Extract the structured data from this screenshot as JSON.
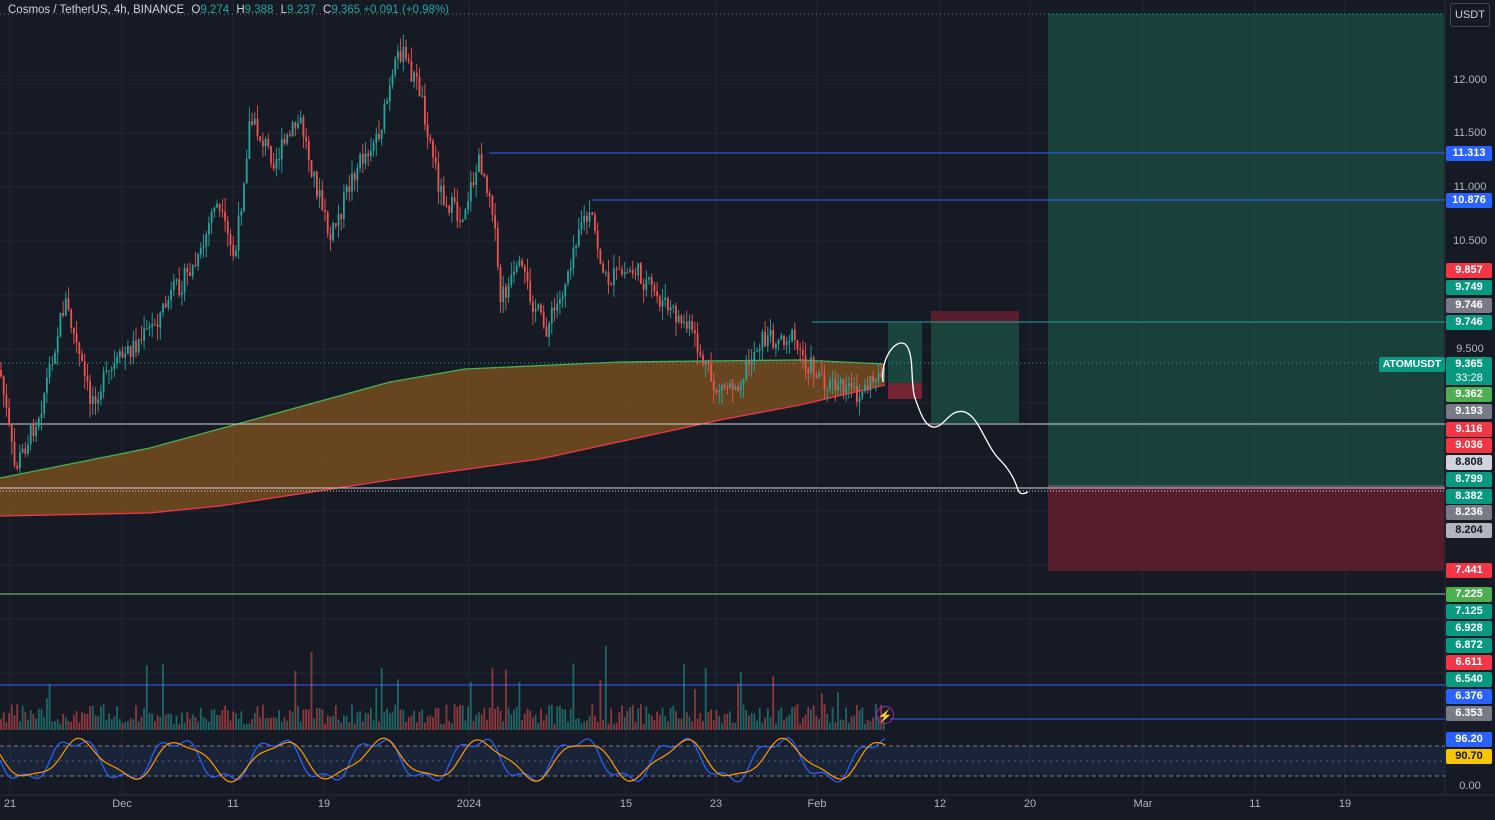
{
  "header": {
    "symbol": "Cosmos / TetherUS, 4h, BINANCE",
    "open_label": "O",
    "open": "9.274",
    "high_label": "H",
    "high": "9.388",
    "low_label": "L",
    "low": "9.237",
    "close_label": "C",
    "close": "9.365",
    "change": "+0.091 (+0.98%)"
  },
  "price_axis": {
    "unit": "USDT",
    "ticks": [
      "12.000",
      "11.500",
      "11.000",
      "10.500",
      "9.500",
      "0.00"
    ]
  },
  "price_labels": [
    {
      "text": "11.313",
      "bg": "#2962ff",
      "fg": "#ffffff"
    },
    {
      "text": "10.876",
      "bg": "#2962ff",
      "fg": "#ffffff"
    },
    {
      "text": "9.857",
      "bg": "#f23645",
      "fg": "#ffffff"
    },
    {
      "text": "9.749",
      "bg": "#089981",
      "fg": "#ffffff"
    },
    {
      "text": "9.746",
      "bg": "#787b86",
      "fg": "#ffffff"
    },
    {
      "text": "9.746",
      "bg": "#089981",
      "fg": "#ffffff"
    },
    {
      "text": "9.365",
      "bg": "#089981",
      "fg": "#ffffff"
    },
    {
      "text": "9.362",
      "bg": "#4caf50",
      "fg": "#ffffff"
    },
    {
      "text": "9.193",
      "bg": "#787b86",
      "fg": "#ffffff"
    },
    {
      "text": "9.116",
      "bg": "#f23645",
      "fg": "#ffffff"
    },
    {
      "text": "9.036",
      "bg": "#f23645",
      "fg": "#ffffff"
    },
    {
      "text": "8.808",
      "bg": "#d1d4dc",
      "fg": "#131722"
    },
    {
      "text": "8.799",
      "bg": "#089981",
      "fg": "#ffffff"
    },
    {
      "text": "8.382",
      "bg": "#089981",
      "fg": "#ffffff"
    },
    {
      "text": "8.236",
      "bg": "#787b86",
      "fg": "#ffffff"
    },
    {
      "text": "8.204",
      "bg": "#b2b5be",
      "fg": "#131722"
    },
    {
      "text": "7.441",
      "bg": "#f23645",
      "fg": "#ffffff"
    },
    {
      "text": "7.225",
      "bg": "#4caf50",
      "fg": "#ffffff"
    },
    {
      "text": "7.125",
      "bg": "#089981",
      "fg": "#ffffff"
    },
    {
      "text": "6.928",
      "bg": "#089981",
      "fg": "#ffffff"
    },
    {
      "text": "6.872",
      "bg": "#089981",
      "fg": "#ffffff"
    },
    {
      "text": "6.611",
      "bg": "#f23645",
      "fg": "#ffffff"
    },
    {
      "text": "6.540",
      "bg": "#089981",
      "fg": "#ffffff"
    },
    {
      "text": "6.376",
      "bg": "#2962ff",
      "fg": "#ffffff"
    },
    {
      "text": "6.353",
      "bg": "#787b86",
      "fg": "#ffffff"
    },
    {
      "text": "96.20",
      "bg": "#2962ff",
      "fg": "#ffffff"
    },
    {
      "text": "90.70",
      "bg": "#f7c600",
      "fg": "#131722"
    }
  ],
  "symbol_tag": "ATOMUSDT",
  "countdown": "33:28",
  "time_axis": [
    "21",
    "Dec",
    "11",
    "19",
    "2024",
    "15",
    "23",
    "Feb",
    "12",
    "20",
    "Mar",
    "11",
    "19"
  ],
  "colors": {
    "background": "#161a25",
    "up": "#26a69a",
    "down": "#ef5350",
    "ribbon_fill": "#8a5a1c",
    "ribbon_upper": "#4caf50",
    "ribbon_lower": "#f23645",
    "hline_blue": "#2962ff",
    "hline_white": "#d1d4dc",
    "hline_green": "#81c784",
    "long_target": "#1b4d43",
    "long_stop": "#5c1f2b",
    "stoch_k": "#2962ff",
    "stoch_d": "#ff9800"
  },
  "icons": {
    "alert": "lightning-icon"
  },
  "alert_glyph": "⚡"
}
